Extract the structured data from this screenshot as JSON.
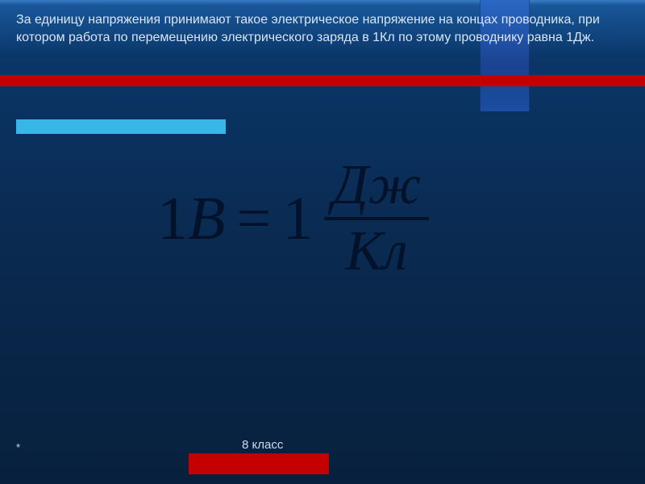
{
  "header": {
    "text": "За единицу напряжения принимают такое электрическое напряжение на концах проводника, при котором работа по перемещению электрического заряда в 1Кл по этому проводнику равна 1Дж."
  },
  "formula": {
    "lhs_value": "1",
    "lhs_unit": "В",
    "equals": "=",
    "rhs_one": "1",
    "numerator": "Дж",
    "denominator": "Кл"
  },
  "footer": {
    "star": "*",
    "class_label": "8 класс"
  },
  "palette": {
    "bg_top": "#1a5a9e",
    "bg_mid": "#0a3668",
    "bg_bottom": "#07203d",
    "red": "#c40000",
    "cyan": "#38b6e8",
    "stripe": "#1a4ea0",
    "text_header": "#d8e6f5",
    "formula_color": "#02122a"
  },
  "layout": {
    "slide_w": 800,
    "slide_h": 600,
    "formula_fontsize": 76,
    "header_fontsize": 16
  }
}
